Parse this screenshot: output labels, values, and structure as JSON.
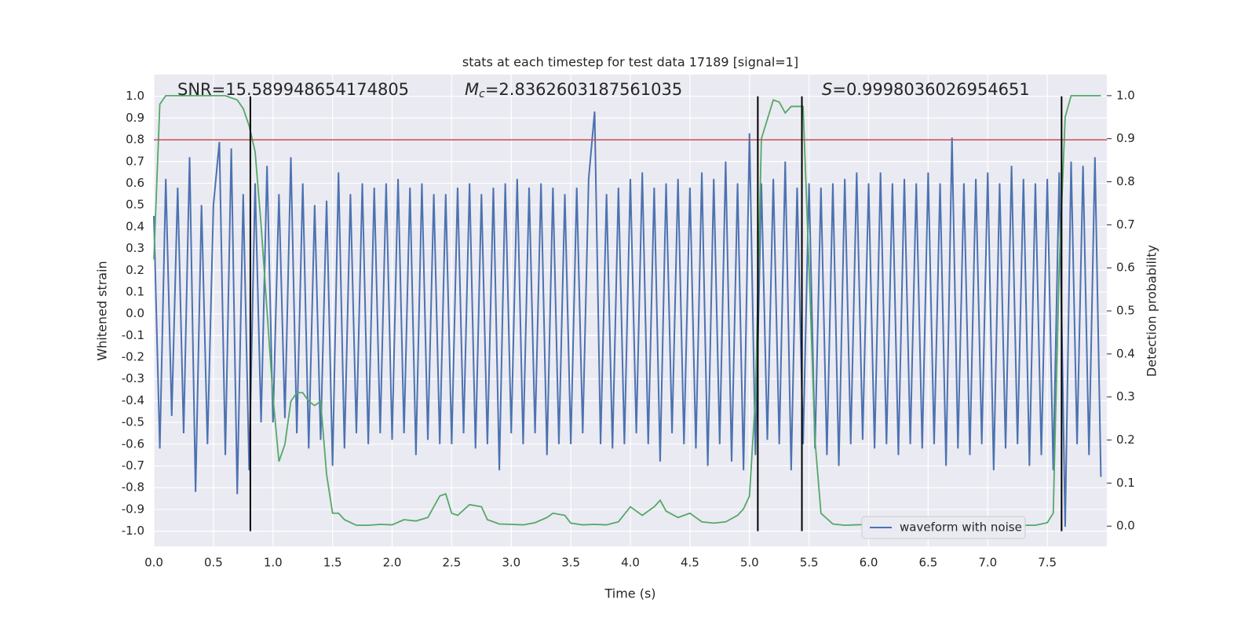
{
  "chart_data": {
    "type": "line",
    "title": "stats at each timestep for test data 17189 [signal=1]",
    "xlabel": "Time (s)",
    "ylabel": "Whitened strain",
    "y2label": "Detection probability",
    "annotations": [
      {
        "text": "SNR=15.589948654174805"
      },
      {
        "symbol": "M",
        "subscript": "c",
        "text": "=2.8362603187561035"
      },
      {
        "symbol": "S",
        "text": "=0.9998036026954651"
      }
    ],
    "xlim": [
      0,
      8.0
    ],
    "xticks": [
      {
        "value": 0,
        "label": "0.0"
      },
      0.5,
      {
        "value": 1,
        "label": "1.0"
      },
      1.5,
      {
        "value": 2,
        "label": "2.0"
      },
      2.5,
      {
        "value": 3,
        "label": "3.0"
      },
      3.5,
      {
        "value": 4,
        "label": "4.0"
      },
      4.5,
      {
        "value": 5,
        "label": "5.0"
      },
      5.5,
      {
        "value": 6,
        "label": "6.0"
      },
      6.5,
      {
        "value": 7,
        "label": "7.0"
      },
      7.5
    ],
    "ylim": [
      -1.07,
      1.1
    ],
    "yticks": [
      {
        "value": 1,
        "label": "1.0"
      },
      0.9,
      0.8,
      0.7,
      0.6,
      0.5,
      0.4,
      0.3,
      0.2,
      0.1,
      {
        "value": 0,
        "label": "0.0"
      },
      -0.1,
      -0.2,
      -0.3,
      -0.4,
      -0.5,
      -0.6,
      -0.7,
      -0.8,
      -0.9,
      {
        "value": -1,
        "label": "-1.0"
      }
    ],
    "y2lim": [
      -0.047,
      1.049
    ],
    "y2ticks": [
      {
        "value": 1,
        "label": "1.0"
      },
      0.9,
      0.8,
      0.7,
      0.6,
      0.5,
      0.4,
      0.3,
      0.2,
      0.1,
      {
        "value": 0,
        "label": "0.0"
      }
    ],
    "grid": true,
    "legend": "lower right",
    "threshold": {
      "value": 0.8,
      "color": "#c44e52"
    },
    "vlines": {
      "x": [
        0.81,
        5.07,
        5.44,
        7.62
      ],
      "color": "#000000",
      "ylim": [
        -1,
        1
      ]
    },
    "series": [
      {
        "name": "waveform with noise",
        "color": "#4c72b0",
        "x": [
          0,
          0.05,
          0.1,
          0.15,
          0.2,
          0.25,
          0.3,
          0.35,
          0.4,
          0.45,
          0.5,
          0.55,
          0.6,
          0.65,
          0.7,
          0.75,
          0.8,
          0.85,
          0.9,
          0.95,
          1,
          1.05,
          1.1,
          1.15,
          1.2,
          1.25,
          1.3,
          1.35,
          1.4,
          1.45,
          1.5,
          1.55,
          1.6,
          1.65,
          1.7,
          1.75,
          1.8,
          1.85,
          1.9,
          1.95,
          2,
          2.05,
          2.1,
          2.15,
          2.2,
          2.25,
          2.3,
          2.35,
          2.4,
          2.45,
          2.5,
          2.55,
          2.6,
          2.65,
          2.7,
          2.75,
          2.8,
          2.85,
          2.9,
          2.95,
          3,
          3.05,
          3.1,
          3.15,
          3.2,
          3.25,
          3.3,
          3.35,
          3.4,
          3.45,
          3.5,
          3.55,
          3.6,
          3.65,
          3.7,
          3.75,
          3.8,
          3.85,
          3.9,
          3.95,
          4,
          4.05,
          4.1,
          4.15,
          4.2,
          4.25,
          4.3,
          4.35,
          4.4,
          4.45,
          4.5,
          4.55,
          4.6,
          4.65,
          4.7,
          4.75,
          4.8,
          4.85,
          4.9,
          4.95,
          5,
          5.05,
          5.1,
          5.15,
          5.2,
          5.25,
          5.3,
          5.35,
          5.4,
          5.45,
          5.5,
          5.55,
          5.6,
          5.65,
          5.7,
          5.75,
          5.8,
          5.85,
          5.9,
          5.95,
          6,
          6.05,
          6.1,
          6.15,
          6.2,
          6.25,
          6.3,
          6.35,
          6.4,
          6.45,
          6.5,
          6.55,
          6.6,
          6.65,
          6.7,
          6.75,
          6.8,
          6.85,
          6.9,
          6.95,
          7,
          7.05,
          7.1,
          7.15,
          7.2,
          7.25,
          7.3,
          7.35,
          7.4,
          7.45,
          7.5,
          7.55,
          7.6,
          7.65,
          7.7,
          7.75,
          7.8,
          7.85,
          7.9,
          7.95
        ],
        "values": [
          0.45,
          -0.62,
          0.62,
          -0.47,
          0.58,
          -0.55,
          0.72,
          -0.82,
          0.5,
          -0.6,
          0.5,
          0.79,
          -0.65,
          0.76,
          -0.83,
          0.55,
          -0.72,
          0.6,
          -0.5,
          0.68,
          -0.5,
          0.55,
          -0.48,
          0.72,
          -0.55,
          0.6,
          -0.62,
          0.5,
          -0.58,
          0.52,
          -0.7,
          0.65,
          -0.62,
          0.55,
          -0.55,
          0.6,
          -0.6,
          0.58,
          -0.55,
          0.6,
          -0.58,
          0.62,
          -0.55,
          0.58,
          -0.65,
          0.6,
          -0.58,
          0.55,
          -0.6,
          0.55,
          -0.6,
          0.58,
          -0.55,
          0.6,
          -0.62,
          0.55,
          -0.6,
          0.58,
          -0.72,
          0.6,
          -0.55,
          0.62,
          -0.6,
          0.58,
          -0.55,
          0.6,
          -0.65,
          0.58,
          -0.6,
          0.55,
          -0.6,
          0.58,
          -0.55,
          0.62,
          0.93,
          -0.6,
          0.55,
          -0.62,
          0.58,
          -0.6,
          0.62,
          -0.55,
          0.65,
          -0.6,
          0.58,
          -0.68,
          0.6,
          -0.55,
          0.62,
          -0.6,
          0.58,
          -0.62,
          0.65,
          -0.7,
          0.62,
          -0.6,
          0.7,
          -0.68,
          0.6,
          -0.72,
          0.83,
          -0.65,
          0.6,
          -0.58,
          0.62,
          -0.6,
          0.7,
          -0.72,
          0.58,
          -0.6,
          0.6,
          -0.62,
          0.58,
          -0.65,
          0.6,
          -0.7,
          0.62,
          -0.6,
          0.65,
          -0.58,
          0.6,
          -0.62,
          0.65,
          -0.6,
          0.6,
          -0.65,
          0.62,
          -0.6,
          0.6,
          -0.62,
          0.65,
          -0.6,
          0.6,
          -0.7,
          0.81,
          -0.62,
          0.6,
          -0.65,
          0.62,
          -0.6,
          0.65,
          -0.72,
          0.6,
          -0.62,
          0.68,
          -0.6,
          0.62,
          -0.7,
          0.6,
          -0.65,
          0.62,
          -0.72,
          0.65,
          -0.98,
          0.7,
          -0.6,
          0.68,
          -0.65,
          0.72,
          -0.75
        ]
      },
      {
        "color": "#55a868",
        "axis": "y2",
        "x": [
          0,
          0.05,
          0.1,
          0.2,
          0.3,
          0.4,
          0.5,
          0.6,
          0.65,
          0.7,
          0.75,
          0.8,
          0.85,
          0.9,
          0.95,
          1,
          1.05,
          1.1,
          1.15,
          1.2,
          1.25,
          1.3,
          1.35,
          1.4,
          1.45,
          1.5,
          1.55,
          1.6,
          1.7,
          1.8,
          1.9,
          2,
          2.1,
          2.2,
          2.3,
          2.4,
          2.45,
          2.5,
          2.55,
          2.65,
          2.75,
          2.8,
          2.9,
          3,
          3.1,
          3.2,
          3.3,
          3.35,
          3.45,
          3.5,
          3.6,
          3.7,
          3.8,
          3.9,
          4,
          4.1,
          4.2,
          4.25,
          4.3,
          4.4,
          4.5,
          4.6,
          4.7,
          4.8,
          4.9,
          4.95,
          5,
          5.05,
          5.1,
          5.2,
          5.25,
          5.3,
          5.35,
          5.45,
          5.5,
          5.55,
          5.6,
          5.7,
          5.8,
          5.9,
          6,
          6.2,
          6.5,
          7,
          7.4,
          7.5,
          7.55,
          7.6,
          7.65,
          7.7,
          7.95
        ],
        "values": [
          0.62,
          0.98,
          1,
          1,
          1,
          1,
          1,
          1,
          0.995,
          0.99,
          0.97,
          0.93,
          0.87,
          0.7,
          0.5,
          0.3,
          0.15,
          0.19,
          0.29,
          0.31,
          0.31,
          0.29,
          0.28,
          0.29,
          0.12,
          0.03,
          0.03,
          0.015,
          0.002,
          0.002,
          0.004,
          0.003,
          0.015,
          0.012,
          0.02,
          0.07,
          0.075,
          0.03,
          0.025,
          0.05,
          0.045,
          0.015,
          0.005,
          0.004,
          0.003,
          0.008,
          0.02,
          0.03,
          0.025,
          0.007,
          0.003,
          0.004,
          0.003,
          0.01,
          0.045,
          0.025,
          0.045,
          0.06,
          0.035,
          0.02,
          0.03,
          0.01,
          0.007,
          0.01,
          0.025,
          0.04,
          0.07,
          0.3,
          0.9,
          0.99,
          0.985,
          0.96,
          0.975,
          0.975,
          0.6,
          0.2,
          0.03,
          0.005,
          0.002,
          0.003,
          0.004,
          0.002,
          0.004,
          0.002,
          0.002,
          0.008,
          0.03,
          0.6,
          0.95,
          1,
          1
        ]
      }
    ]
  }
}
